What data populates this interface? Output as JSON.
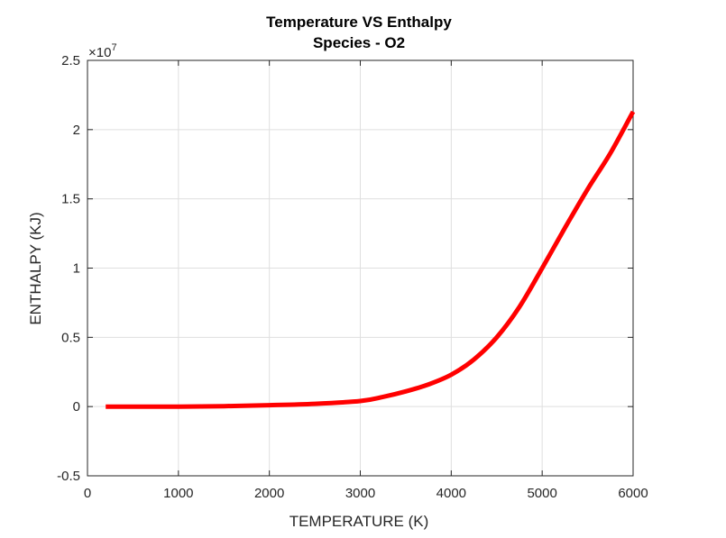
{
  "chart_data": {
    "type": "line",
    "title": "Temperature VS Enthalpy",
    "subtitle": "Species - O2",
    "xlabel": "TEMPERATURE (K)",
    "ylabel": "ENTHALPY (KJ)",
    "y_exponent_label": "×10",
    "y_exponent_power": "7",
    "xlim": [
      0,
      6000
    ],
    "ylim": [
      -0.5,
      2.5
    ],
    "x_ticks": [
      0,
      1000,
      2000,
      3000,
      4000,
      5000,
      6000
    ],
    "x_tick_labels": [
      "0",
      "1000",
      "2000",
      "3000",
      "4000",
      "5000",
      "6000"
    ],
    "y_ticks": [
      -0.5,
      0,
      0.5,
      1,
      1.5,
      2,
      2.5
    ],
    "y_tick_labels": [
      "-0.5",
      "0",
      "0.5",
      "1",
      "1.5",
      "2",
      "2.5"
    ],
    "grid": true,
    "series": [
      {
        "color": "#ff0000",
        "x": [
          200,
          500,
          1000,
          1500,
          2000,
          2500,
          3000,
          3250,
          3500,
          3750,
          4000,
          4250,
          4500,
          4750,
          5000,
          5250,
          5500,
          5750,
          6000
        ],
        "y": [
          0,
          0,
          0,
          0.003,
          0.01,
          0.02,
          0.04,
          0.07,
          0.11,
          0.16,
          0.23,
          0.34,
          0.5,
          0.72,
          1.0,
          1.29,
          1.57,
          1.83,
          2.13
        ]
      }
    ]
  }
}
